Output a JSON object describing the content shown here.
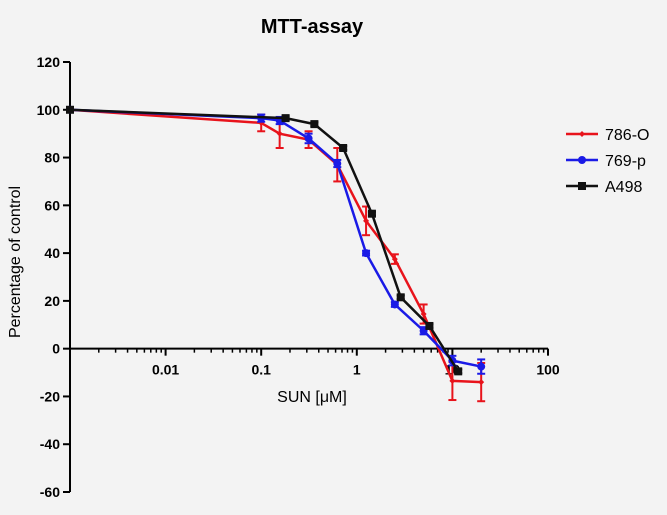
{
  "chart_data": {
    "type": "line",
    "title": "MTT-assay",
    "xlabel": "SUN [μM]",
    "ylabel": "Percentage of control",
    "x_scale": "log",
    "xlim": [
      0.001,
      100
    ],
    "ylim": [
      -60,
      120
    ],
    "x_ticks": [
      0.01,
      0.1,
      1,
      10,
      100
    ],
    "x_tick_labels": [
      "0.01",
      "0.1",
      "1",
      "10",
      "100"
    ],
    "y_ticks": [
      -60,
      -40,
      -20,
      0,
      20,
      40,
      60,
      80,
      100,
      120
    ],
    "y_tick_labels": [
      "-60",
      "-40",
      "-20",
      "0",
      "20",
      "40",
      "60",
      "80",
      "100",
      "120"
    ],
    "grid": false,
    "legend_position": "right",
    "series": [
      {
        "name": "786-O",
        "color": "#e8131b",
        "marker": "diamond",
        "points": [
          {
            "x": 0.001,
            "y": 100,
            "err": 0
          },
          {
            "x": 0.1,
            "y": 94.5,
            "err": 3.5
          },
          {
            "x": 0.156,
            "y": 90,
            "err": 6
          },
          {
            "x": 0.313,
            "y": 87.5,
            "err": 3.5
          },
          {
            "x": 0.625,
            "y": 77,
            "err": 7
          },
          {
            "x": 1.25,
            "y": 53.5,
            "err": 6
          },
          {
            "x": 2.5,
            "y": 37.5,
            "err": 2
          },
          {
            "x": 5,
            "y": 14.5,
            "err": 4
          },
          {
            "x": 10,
            "y": -13.5,
            "err": 8
          },
          {
            "x": 20,
            "y": -14,
            "err": 8
          }
        ]
      },
      {
        "name": "769-p",
        "color": "#1a1ae6",
        "marker": "circle",
        "points": [
          {
            "x": 0.001,
            "y": 100,
            "err": 0
          },
          {
            "x": 0.1,
            "y": 96.5,
            "err": 1.5
          },
          {
            "x": 0.156,
            "y": 95.5,
            "err": 1.5
          },
          {
            "x": 0.313,
            "y": 88,
            "err": 2
          },
          {
            "x": 0.625,
            "y": 77.5,
            "err": 1.5
          },
          {
            "x": 1.25,
            "y": 40,
            "err": 1
          },
          {
            "x": 2.5,
            "y": 18.5,
            "err": 1
          },
          {
            "x": 5,
            "y": 7.5,
            "err": 1.5
          },
          {
            "x": 10,
            "y": -5,
            "err": 2
          },
          {
            "x": 20,
            "y": -7.5,
            "err": 3
          }
        ]
      },
      {
        "name": "A498",
        "color": "#111111",
        "marker": "square",
        "points": [
          {
            "x": 0.001,
            "y": 100,
            "err": 0
          },
          {
            "x": 0.18,
            "y": 96.5,
            "err": 0.8
          },
          {
            "x": 0.36,
            "y": 94,
            "err": 0.8
          },
          {
            "x": 0.72,
            "y": 84,
            "err": 0.8
          },
          {
            "x": 1.44,
            "y": 56.5,
            "err": 0.8
          },
          {
            "x": 2.88,
            "y": 21.5,
            "err": 0.8
          },
          {
            "x": 5.75,
            "y": 9.5,
            "err": 0.8
          },
          {
            "x": 11.5,
            "y": -9.5,
            "err": 0.8
          }
        ]
      }
    ]
  }
}
